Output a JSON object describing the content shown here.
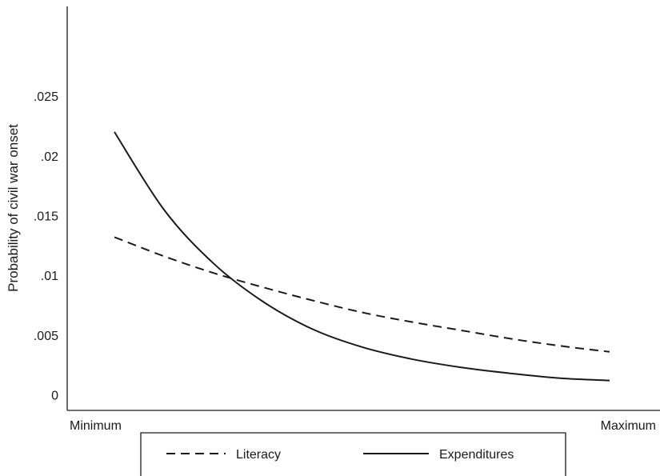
{
  "chart_data": {
    "type": "line",
    "title": "",
    "xlabel": "",
    "ylabel": "Probability of civil war onset",
    "x_tick_labels": [
      "Minimum",
      "Maximum"
    ],
    "y_ticks": [
      0,
      0.005,
      0.01,
      0.015,
      0.02,
      0.025
    ],
    "y_tick_labels": [
      "0",
      ".005",
      ".01",
      ".015",
      ".02",
      ".025"
    ],
    "xlim": [
      0,
      1
    ],
    "ylim": [
      -0.0013,
      0.0325
    ],
    "grid": false,
    "legend_position": "bottom",
    "series": [
      {
        "name": "Literacy",
        "style": "dashed",
        "color": "#1a1a1a",
        "x": [
          0,
          0.1,
          0.2,
          0.3,
          0.4,
          0.5,
          0.6,
          0.7,
          0.8,
          0.9,
          1.0
        ],
        "y": [
          0.0132,
          0.0116,
          0.0102,
          0.009,
          0.0079,
          0.0069,
          0.0061,
          0.0054,
          0.0047,
          0.0041,
          0.0036
        ]
      },
      {
        "name": "Expenditures",
        "style": "solid",
        "color": "#1a1a1a",
        "x": [
          0,
          0.1,
          0.2,
          0.3,
          0.4,
          0.5,
          0.6,
          0.7,
          0.8,
          0.9,
          1.0
        ],
        "y": [
          0.022,
          0.0155,
          0.011,
          0.0078,
          0.0055,
          0.004,
          0.003,
          0.0023,
          0.0018,
          0.0014,
          0.0012
        ]
      }
    ]
  }
}
